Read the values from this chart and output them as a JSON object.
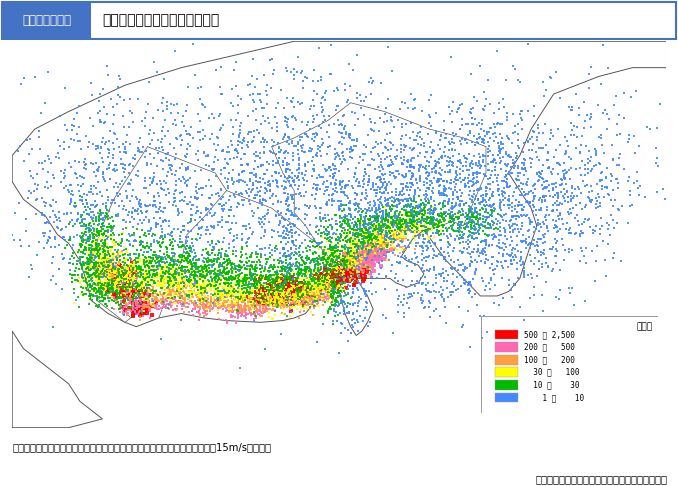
{
  "title_box_label": "図２－４－１７",
  "title_text": "東海地震による建物被害の分布",
  "note_text": "注）揺れ、液状化、津波、火災、がけ崩れによる被害の合計（朝５時、風速15m/sの場合）",
  "source_text": "出典：中央防災会議（平成５年３月１８日）資料",
  "legend_unit": "（棟）",
  "legend_entries": [
    {
      "label": "500 ～ 2,500",
      "color": "#FF0000"
    },
    {
      "label": "200 ～   500",
      "color": "#FF69B4"
    },
    {
      "label": "100 ～   200",
      "color": "#FFA040"
    },
    {
      "label": "  30 ～   100",
      "color": "#FFFF00"
    },
    {
      "label": "  10 ～    30",
      "color": "#00BB00"
    },
    {
      "label": "    1 ～    10",
      "color": "#4488FF"
    }
  ],
  "bg_color": "#FFFFFF",
  "header_bg": "#4472C4",
  "header_text_color": "#FFFFFF",
  "map_border": "#888888",
  "coastline_color": "#555555"
}
